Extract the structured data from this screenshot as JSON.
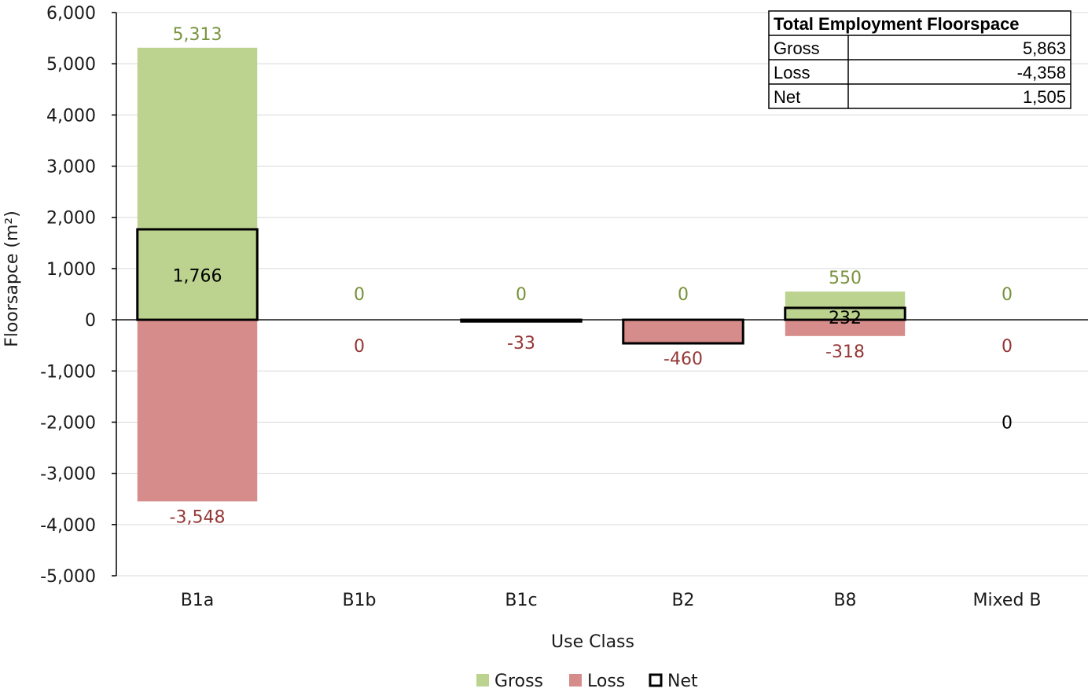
{
  "chart_data": {
    "type": "bar",
    "xlabel": "Use Class",
    "ylabel": "Floorsapce (m²)",
    "ylim": [
      -5000,
      6000
    ],
    "ytick_step": 1000,
    "grid": true,
    "legend_placement": "bottom-center",
    "categories": [
      "B1a",
      "B1b",
      "B1c",
      "B2",
      "B8",
      "Mixed B"
    ],
    "series": [
      {
        "name": "Gross",
        "values": [
          5313,
          0,
          0,
          0,
          550,
          0
        ],
        "labels": [
          "5,313",
          "0",
          "0",
          "0",
          "550",
          "0"
        ]
      },
      {
        "name": "Loss",
        "values": [
          -3548,
          0,
          -33,
          -460,
          -318,
          0
        ],
        "labels": [
          "-3,548",
          "0",
          "-33",
          "-460",
          "-318",
          "0"
        ]
      },
      {
        "name": "Net",
        "values": [
          1766,
          0,
          -33,
          -460,
          232,
          0
        ],
        "labels": [
          "1,766",
          "",
          "",
          "",
          "232",
          "0"
        ]
      }
    ],
    "colors": {
      "Gross": "#bcd38f",
      "Loss": "#d68c8a",
      "Net": "#000000",
      "gross_label": "#77933c",
      "loss_label": "#953735"
    },
    "summary_table": {
      "title": "Total Employment Floorspace",
      "rows": [
        {
          "label": "Gross",
          "value": "5,863"
        },
        {
          "label": "Loss",
          "value": "-4,358"
        },
        {
          "label": "Net",
          "value": "1,505"
        }
      ]
    }
  }
}
